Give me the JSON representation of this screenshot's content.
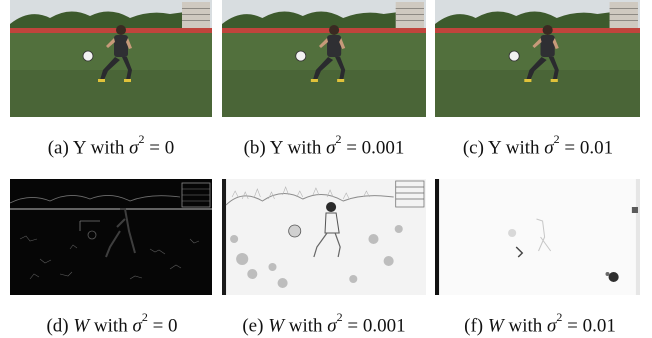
{
  "figure": {
    "top_row": [
      {
        "tag": "(a)",
        "pre": "Y with ",
        "sym": "σ",
        "exp": "2",
        "post": " = 0"
      },
      {
        "tag": "(b)",
        "pre": "Y with ",
        "sym": "σ",
        "exp": "2",
        "post": " = 0.001"
      },
      {
        "tag": "(c)",
        "pre": "Y with ",
        "sym": "σ",
        "exp": "2",
        "post": " = 0.01"
      }
    ],
    "bottom_row": [
      {
        "tag": "(d)",
        "var": "W",
        "pre": " with ",
        "sym": "σ",
        "exp": "2",
        "post": " = 0"
      },
      {
        "tag": "(e)",
        "var": "W",
        "pre": " with ",
        "sym": "σ",
        "exp": "2",
        "post": " = 0.001"
      },
      {
        "tag": "(f)",
        "var": "W",
        "pre": " with ",
        "sym": "σ",
        "exp": "2",
        "post": " = 0.01"
      }
    ]
  },
  "colors": {
    "grass": "#4f6b3b",
    "sky": "#d9dde0",
    "trees": "#3f5a2e",
    "shirt": "#2f2f33",
    "map_dark": "#050505",
    "map_light": "#f6f6f6"
  }
}
